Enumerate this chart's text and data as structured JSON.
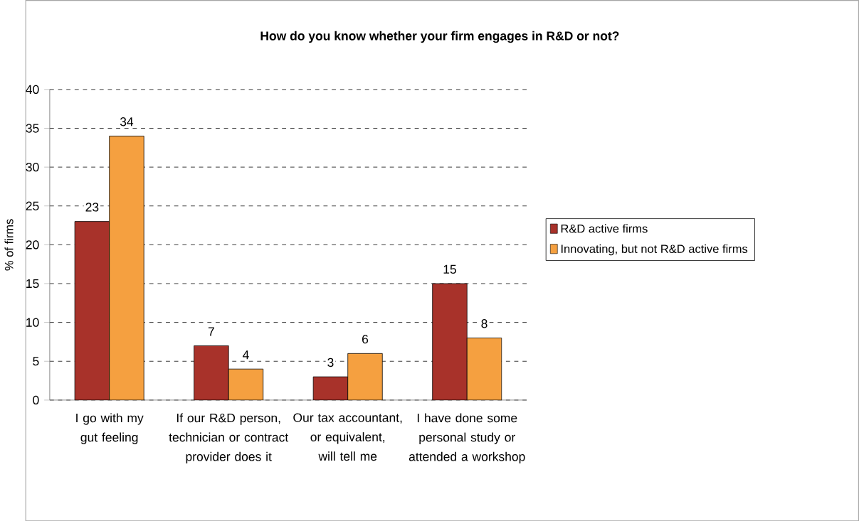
{
  "chart_data": {
    "type": "bar",
    "title": "How do you know whether your firm engages in R&D or not?",
    "ylabel": "% of firms",
    "categories": [
      "I go with my gut feeling",
      "If our R&D person, technician or contract provider does it",
      "Our tax accountant, or equivalent, will tell me",
      "I have done some personal study or attended a workshop"
    ],
    "series": [
      {
        "name": "R&D active firms",
        "color": "#a8322a",
        "values": [
          23,
          7,
          3,
          15
        ]
      },
      {
        "name": "Innovating, but not R&D active firms",
        "color": "#f5a040",
        "values": [
          34,
          4,
          6,
          8
        ]
      }
    ],
    "ylim": [
      0,
      40
    ],
    "yticks": [
      0,
      5,
      10,
      15,
      20,
      25,
      30,
      35,
      40
    ],
    "grid": "y",
    "legend": "right",
    "data_labels": true
  }
}
